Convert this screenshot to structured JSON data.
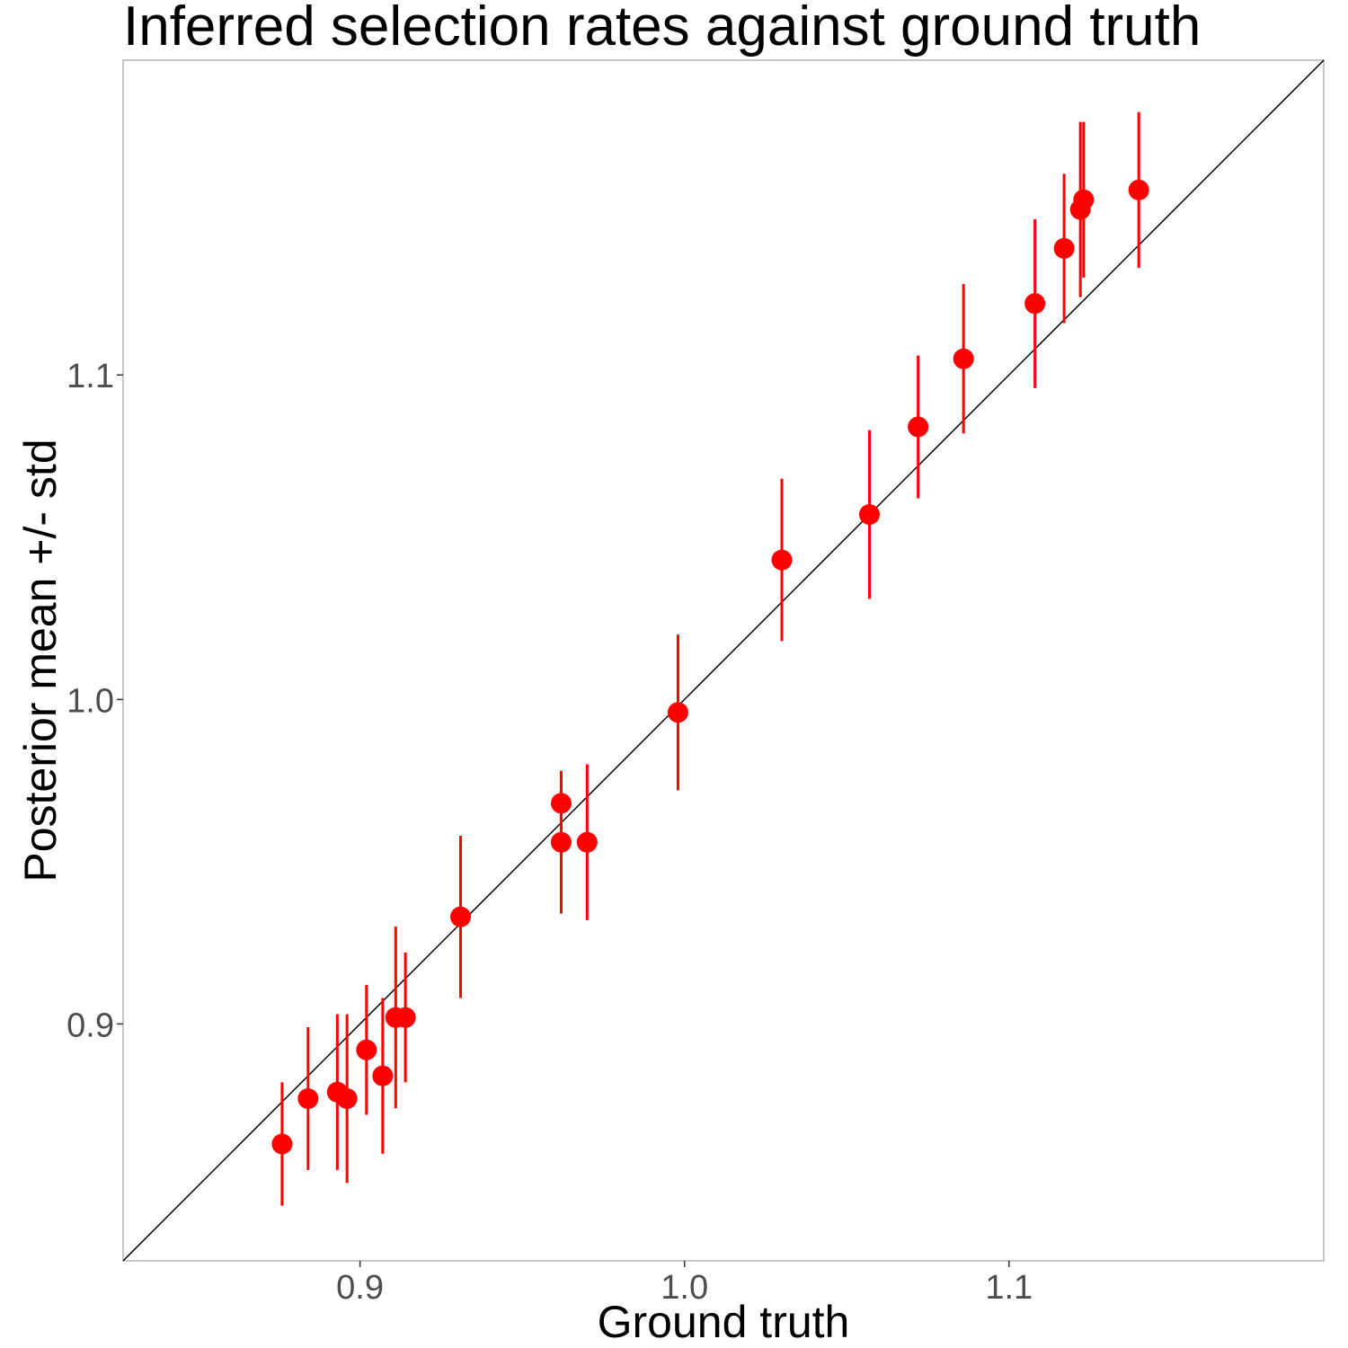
{
  "chart_data": {
    "type": "scatter",
    "title": "Inferred selection rates against ground truth",
    "xlabel": "Ground truth",
    "ylabel": "Posterior mean +/- std",
    "xlim": [
      0.827,
      1.197
    ],
    "ylim": [
      0.827,
      1.197
    ],
    "x_ticks": [
      "0.9",
      "1.0",
      "1.1"
    ],
    "y_ticks": [
      "0.9",
      "1.0",
      "1.1"
    ],
    "grid": false,
    "reference_line": "y = x",
    "points": [
      {
        "x": 0.876,
        "y": 0.863,
        "std": 0.019
      },
      {
        "x": 0.884,
        "y": 0.877,
        "std": 0.022
      },
      {
        "x": 0.893,
        "y": 0.879,
        "std": 0.024
      },
      {
        "x": 0.896,
        "y": 0.877,
        "std": 0.026
      },
      {
        "x": 0.902,
        "y": 0.892,
        "std": 0.02
      },
      {
        "x": 0.907,
        "y": 0.884,
        "std": 0.024
      },
      {
        "x": 0.911,
        "y": 0.902,
        "std": 0.028
      },
      {
        "x": 0.914,
        "y": 0.902,
        "std": 0.02
      },
      {
        "x": 0.931,
        "y": 0.933,
        "std": 0.025
      },
      {
        "x": 0.962,
        "y": 0.956,
        "std": 0.022
      },
      {
        "x": 0.962,
        "y": 0.968,
        "std": 0.009
      },
      {
        "x": 0.97,
        "y": 0.956,
        "std": 0.024
      },
      {
        "x": 0.998,
        "y": 0.996,
        "std": 0.024
      },
      {
        "x": 1.03,
        "y": 1.043,
        "std": 0.025
      },
      {
        "x": 1.057,
        "y": 1.057,
        "std": 0.026
      },
      {
        "x": 1.072,
        "y": 1.084,
        "std": 0.022
      },
      {
        "x": 1.086,
        "y": 1.105,
        "std": 0.023
      },
      {
        "x": 1.108,
        "y": 1.122,
        "std": 0.026
      },
      {
        "x": 1.117,
        "y": 1.139,
        "std": 0.023
      },
      {
        "x": 1.122,
        "y": 1.151,
        "std": 0.027
      },
      {
        "x": 1.123,
        "y": 1.154,
        "std": 0.024
      },
      {
        "x": 1.14,
        "y": 1.157,
        "std": 0.024
      }
    ],
    "colors": {
      "points": "#ff0000",
      "errorbars": "#ff0000",
      "reference_line": "#000000",
      "panel_border": "#b3b3b3"
    }
  }
}
